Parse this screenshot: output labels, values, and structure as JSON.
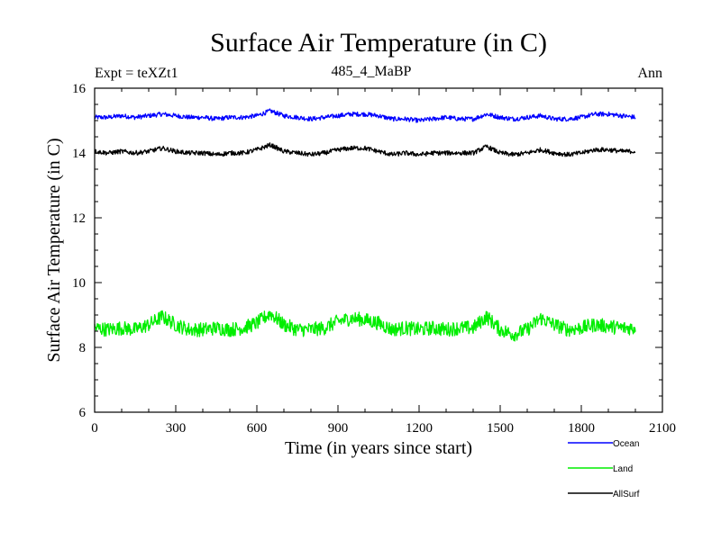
{
  "chart_data": {
    "type": "line",
    "title": "Surface Air Temperature (in C)",
    "subtitle": "485_4_MaBP",
    "experiment_label": "Expt = teXZt1",
    "period_label": "Ann",
    "xlabel": "Time (in years since start)",
    "ylabel": "Surface Air Temperature (in C)",
    "xlim": [
      0,
      2100
    ],
    "ylim": [
      6,
      16
    ],
    "x_ticks": [
      0,
      300,
      600,
      900,
      1200,
      1500,
      1800,
      2100
    ],
    "x_tick_labels": [
      "0",
      "300",
      "600",
      "900",
      "1200",
      "1500",
      "1800",
      "2100"
    ],
    "y_ticks": [
      6,
      8,
      10,
      12,
      14,
      16
    ],
    "y_tick_labels": [
      "6",
      "8",
      "10",
      "12",
      "14",
      "16"
    ],
    "x_minor_step": 100,
    "y_minor_step": 0.5,
    "grid": false,
    "legend_position": "bottom-right, below plot",
    "series": [
      {
        "name": "Ocean",
        "color": "#0000ff",
        "x": [
          0,
          50,
          100,
          150,
          200,
          250,
          300,
          350,
          400,
          450,
          500,
          550,
          600,
          650,
          700,
          750,
          800,
          850,
          900,
          950,
          1000,
          1050,
          1100,
          1150,
          1200,
          1250,
          1300,
          1350,
          1400,
          1450,
          1500,
          1550,
          1600,
          1650,
          1700,
          1750,
          1800,
          1850,
          1900,
          1950,
          2000
        ],
        "values": [
          15.1,
          15.1,
          15.15,
          15.1,
          15.15,
          15.2,
          15.15,
          15.1,
          15.1,
          15.05,
          15.1,
          15.1,
          15.15,
          15.3,
          15.15,
          15.1,
          15.05,
          15.1,
          15.15,
          15.2,
          15.2,
          15.15,
          15.05,
          15.05,
          15.0,
          15.05,
          15.1,
          15.05,
          15.05,
          15.2,
          15.1,
          15.05,
          15.1,
          15.15,
          15.05,
          15.05,
          15.1,
          15.2,
          15.2,
          15.15,
          15.1
        ]
      },
      {
        "name": "Land",
        "color": "#00ee00",
        "x": [
          0,
          50,
          100,
          150,
          200,
          250,
          300,
          350,
          400,
          450,
          500,
          550,
          600,
          650,
          700,
          750,
          800,
          850,
          900,
          950,
          1000,
          1050,
          1100,
          1150,
          1200,
          1250,
          1300,
          1350,
          1400,
          1450,
          1500,
          1550,
          1600,
          1650,
          1700,
          1750,
          1800,
          1850,
          1900,
          1950,
          2000
        ],
        "values": [
          8.6,
          8.55,
          8.6,
          8.55,
          8.7,
          8.95,
          8.7,
          8.55,
          8.55,
          8.6,
          8.55,
          8.6,
          8.75,
          9.05,
          8.7,
          8.55,
          8.55,
          8.6,
          8.8,
          8.9,
          8.85,
          8.75,
          8.55,
          8.6,
          8.55,
          8.6,
          8.55,
          8.6,
          8.6,
          8.95,
          8.55,
          8.4,
          8.55,
          8.9,
          8.7,
          8.55,
          8.6,
          8.7,
          8.65,
          8.6,
          8.6
        ]
      },
      {
        "name": "AllSurf",
        "color": "#000000",
        "x": [
          0,
          50,
          100,
          150,
          200,
          250,
          300,
          350,
          400,
          450,
          500,
          550,
          600,
          650,
          700,
          750,
          800,
          850,
          900,
          950,
          1000,
          1050,
          1100,
          1150,
          1200,
          1250,
          1300,
          1350,
          1400,
          1450,
          1500,
          1550,
          1600,
          1650,
          1700,
          1750,
          1800,
          1850,
          1900,
          1950,
          2000
        ],
        "values": [
          14.05,
          14.0,
          14.05,
          14.0,
          14.05,
          14.15,
          14.05,
          14.0,
          14.0,
          13.95,
          14.0,
          14.0,
          14.1,
          14.25,
          14.05,
          14.0,
          13.95,
          14.0,
          14.1,
          14.15,
          14.15,
          14.05,
          13.95,
          14.0,
          13.95,
          14.0,
          14.0,
          14.0,
          14.0,
          14.2,
          14.0,
          13.95,
          14.0,
          14.1,
          14.0,
          13.95,
          14.0,
          14.1,
          14.1,
          14.05,
          14.05
        ]
      }
    ]
  }
}
